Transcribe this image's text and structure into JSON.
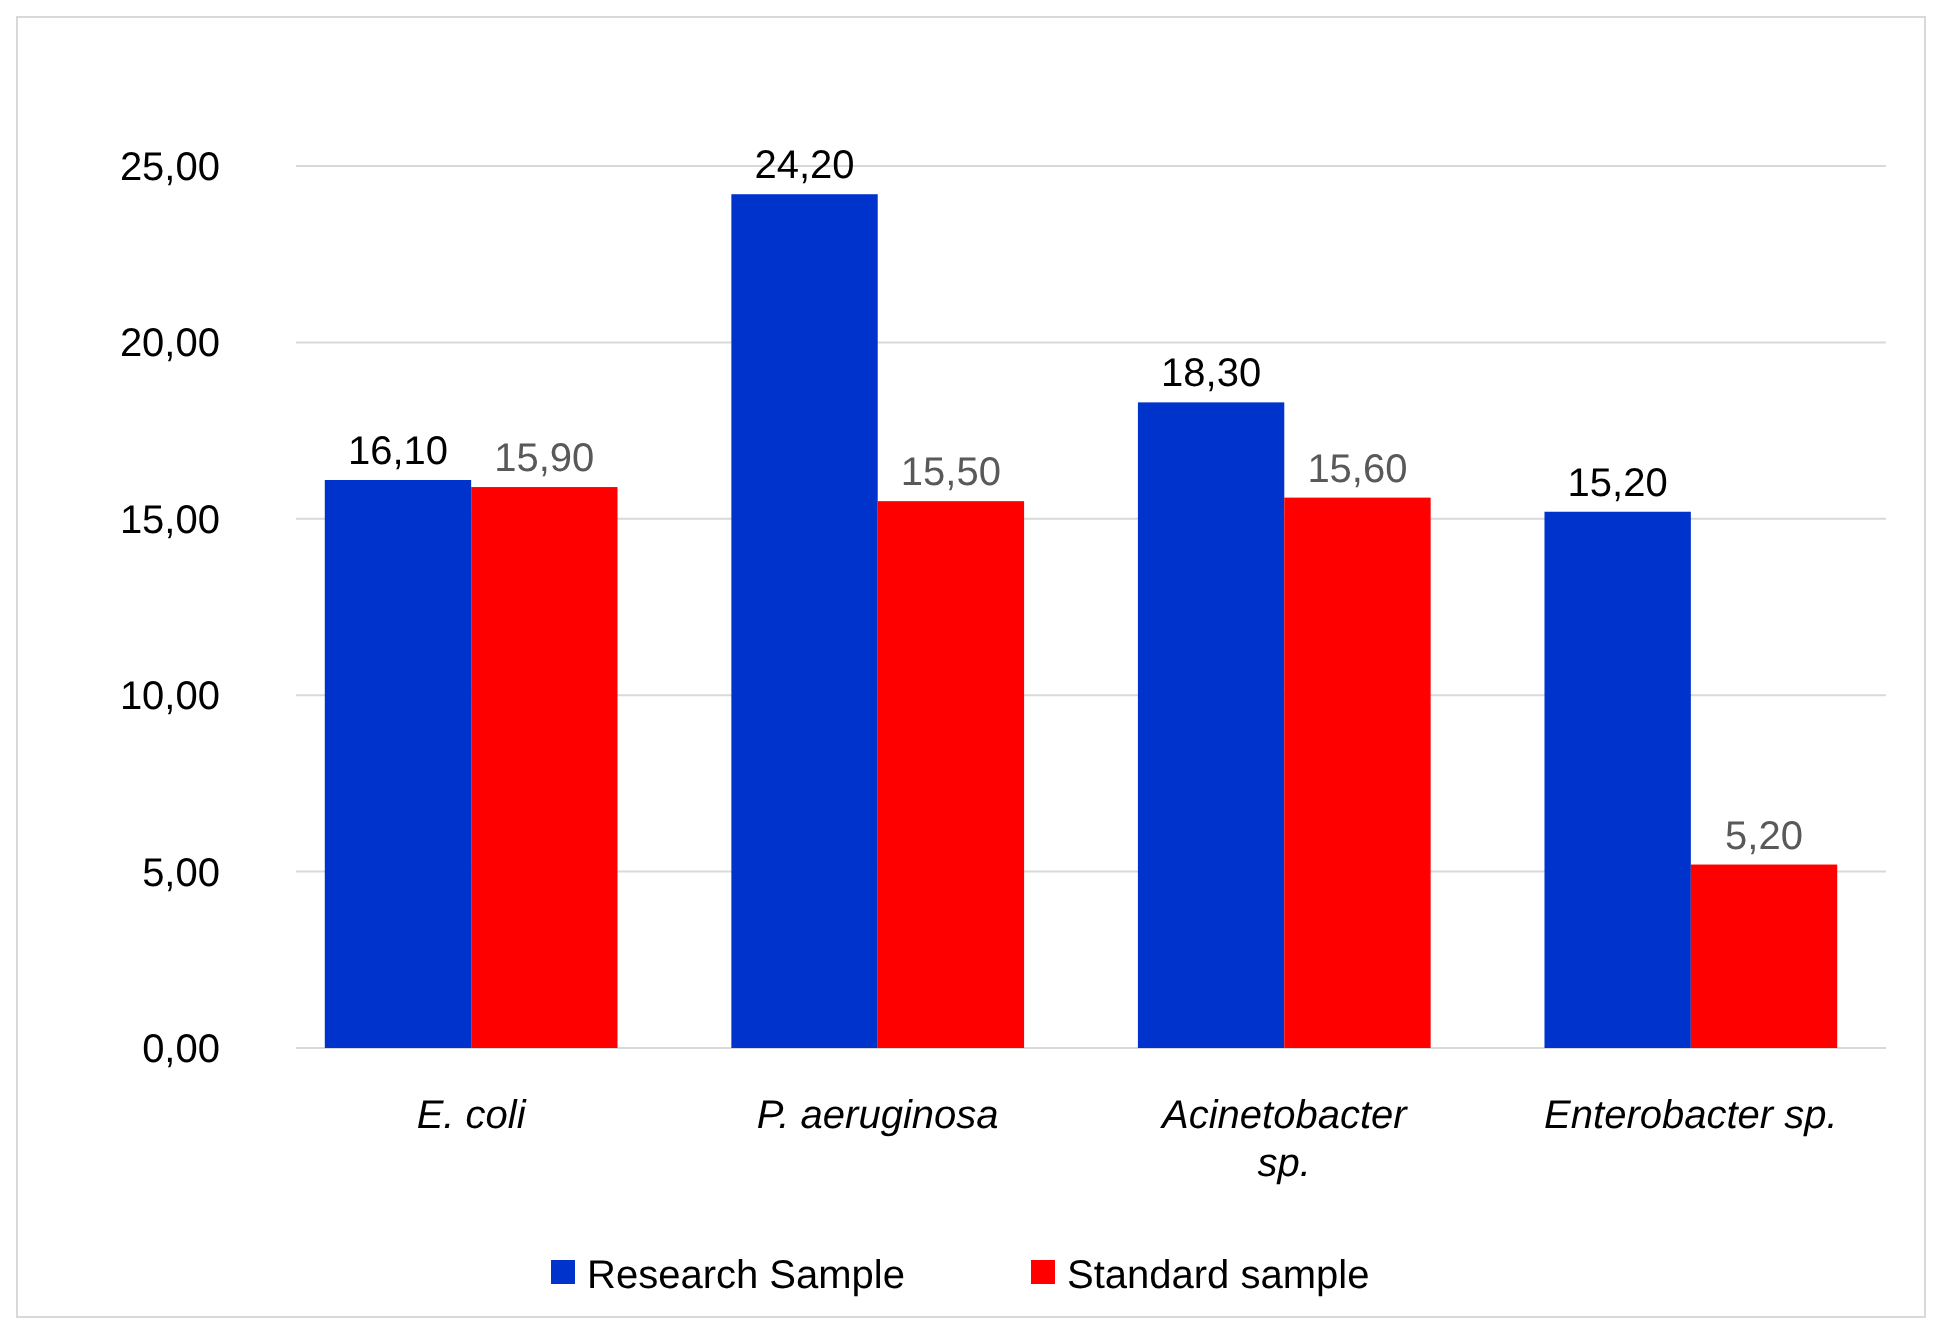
{
  "chart_data": {
    "type": "bar",
    "categories": [
      "E. coli",
      "P. aeruginosa",
      "Acinetobacter sp.",
      "Enterobacter sp."
    ],
    "series": [
      {
        "name": "Research Sample",
        "color": "#0033cc",
        "values": [
          16.1,
          24.2,
          18.3,
          15.2
        ],
        "value_labels": [
          "16,10",
          "24,20",
          "18,30",
          "15,20"
        ]
      },
      {
        "name": "Standard sample",
        "color": "#ff0000",
        "values": [
          15.9,
          15.5,
          15.6,
          5.2
        ],
        "value_labels": [
          "15,90",
          "15,50",
          "15,60",
          "5,20"
        ]
      }
    ],
    "ylim": [
      0,
      25
    ],
    "yticks": [
      {
        "value": 0,
        "label": "0,00"
      },
      {
        "value": 5,
        "label": "5,00"
      },
      {
        "value": 10,
        "label": "10,00"
      },
      {
        "value": 15,
        "label": "15,00"
      },
      {
        "value": 20,
        "label": "20,00"
      },
      {
        "value": 25,
        "label": "25,00"
      }
    ],
    "grid": "y",
    "legend": "bottom"
  }
}
